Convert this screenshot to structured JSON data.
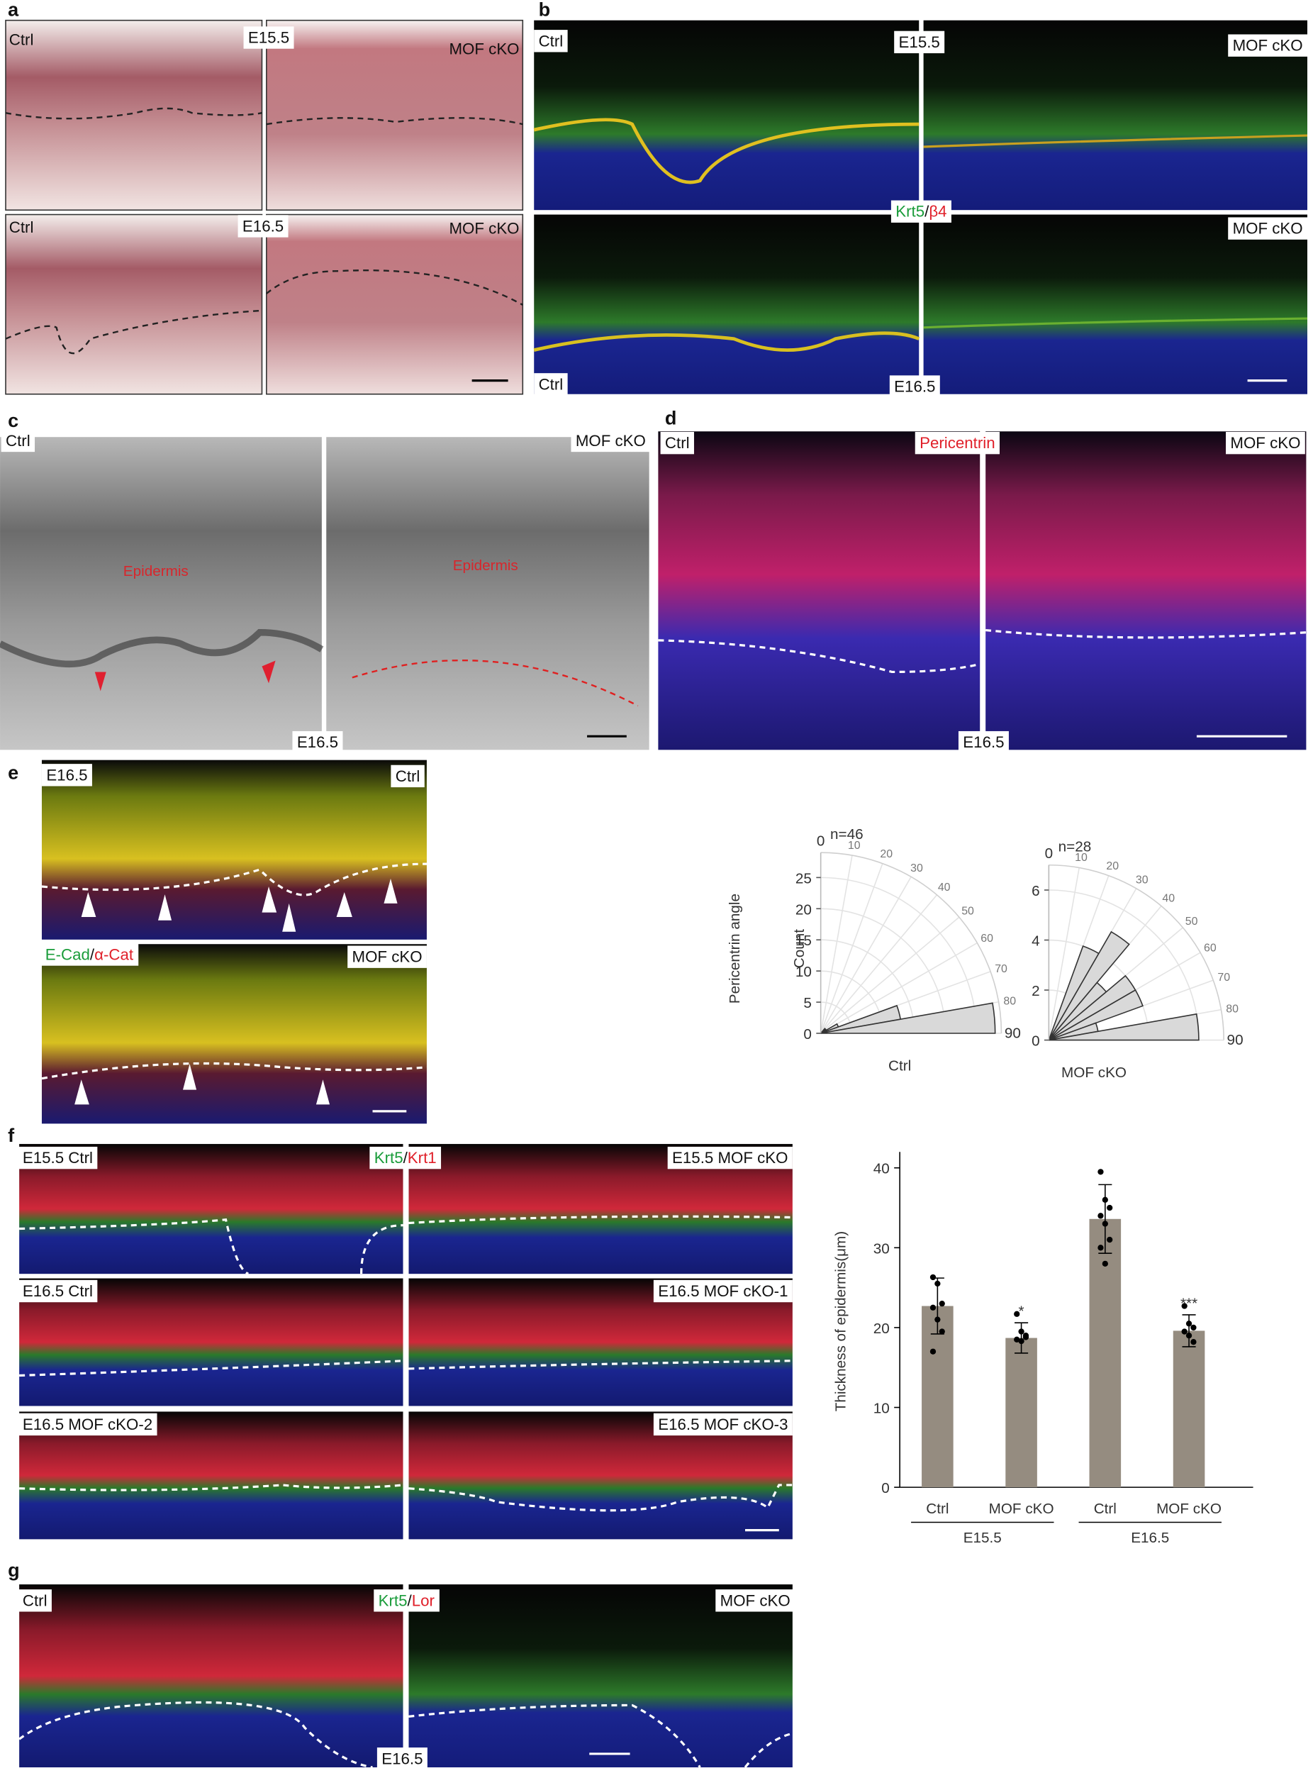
{
  "panels": {
    "a": {
      "label": "a",
      "tags": [
        "Ctrl",
        "E15.5",
        "MOF cKO",
        "Ctrl",
        "E16.5",
        "MOF cKO"
      ]
    },
    "b": {
      "label": "b",
      "tags": [
        "Ctrl",
        "E15.5",
        "MOF cKO",
        "MOF cKO",
        "Ctrl",
        "E16.5"
      ],
      "stain": [
        "Krt5",
        "/",
        "β4"
      ]
    },
    "c": {
      "label": "c",
      "tags": [
        "Ctrl",
        "MOF cKO",
        "E16.5"
      ],
      "annotations": [
        "Epidermis",
        "Epidermis"
      ]
    },
    "d": {
      "label": "d",
      "tags": [
        "Ctrl",
        "MOF cKO",
        "E16.5"
      ],
      "stain": "Pericentrin"
    },
    "e": {
      "label": "e",
      "tags": [
        "E16.5",
        "Ctrl",
        "MOF cKO"
      ],
      "stain": [
        "E-Cad",
        "/",
        "α-Cat"
      ]
    },
    "f": {
      "label": "f",
      "tags": [
        "E15.5 Ctrl",
        "E15.5 MOF cKO",
        "E16.5 Ctrl",
        "E16.5 MOF cKO-1",
        "E16.5 MOF cKO-2",
        "E16.5 MOF cKO-3"
      ],
      "stain": [
        "Krt5",
        "/",
        "Krt1"
      ]
    },
    "g": {
      "label": "g",
      "tags": [
        "Ctrl",
        "MOF cKO",
        "E16.5"
      ],
      "stain": [
        "Krt5",
        "/",
        "Lor"
      ]
    }
  },
  "chart_data": [
    {
      "type": "polar-histogram",
      "title": "n=46",
      "axis_title": "Pericentrin angle",
      "ylabel": "Count",
      "xlabel": "Ctrl",
      "bins": [
        0,
        10,
        20,
        30,
        40,
        50,
        60,
        70,
        80,
        90
      ],
      "values": [
        0,
        0,
        0,
        0,
        1,
        1,
        3,
        13,
        28
      ],
      "xticks": [
        0,
        10,
        20,
        30,
        40,
        50,
        60,
        70,
        80,
        90
      ],
      "ylim": [
        0,
        29
      ],
      "yticks": [
        0,
        5,
        10,
        15,
        20,
        25
      ],
      "color": "#d9d9d9",
      "grid": true
    },
    {
      "type": "polar-histogram",
      "title": "n=28",
      "xlabel": "MOF cKO",
      "bins": [
        0,
        10,
        20,
        30,
        40,
        50,
        60,
        70,
        80,
        90
      ],
      "values": [
        0,
        0,
        4,
        5,
        3,
        4,
        4,
        2,
        6
      ],
      "xticks": [
        0,
        10,
        20,
        30,
        40,
        50,
        60,
        70,
        80,
        90
      ],
      "ylim": [
        0,
        7
      ],
      "yticks": [
        0,
        2,
        4,
        6
      ],
      "color": "#d9d9d9",
      "grid": true
    },
    {
      "type": "bar",
      "ylabel": "Thickness of epidermis(μm)",
      "categories": [
        "Ctrl",
        "MOF cKO",
        "Ctrl",
        "MOF cKO"
      ],
      "groups": [
        "E15.5",
        "E16.5"
      ],
      "values": [
        22.7,
        18.7,
        33.6,
        19.6
      ],
      "errors": [
        3.5,
        1.9,
        4.3,
        2.0
      ],
      "points": [
        [
          26.3,
          25.5,
          23,
          22.5,
          21,
          19.5,
          17
        ],
        [
          21.7,
          19.5,
          19,
          18.5,
          18.3,
          18.8
        ],
        [
          39.5,
          36,
          35,
          34,
          33,
          31,
          30,
          28
        ],
        [
          22.7,
          20.5,
          20,
          19.5,
          19,
          18.2
        ]
      ],
      "annotations": [
        null,
        "*",
        null,
        "***"
      ],
      "ylim": [
        0,
        42
      ],
      "yticks": [
        0,
        10,
        20,
        30,
        40
      ],
      "color": "#958c80"
    }
  ]
}
